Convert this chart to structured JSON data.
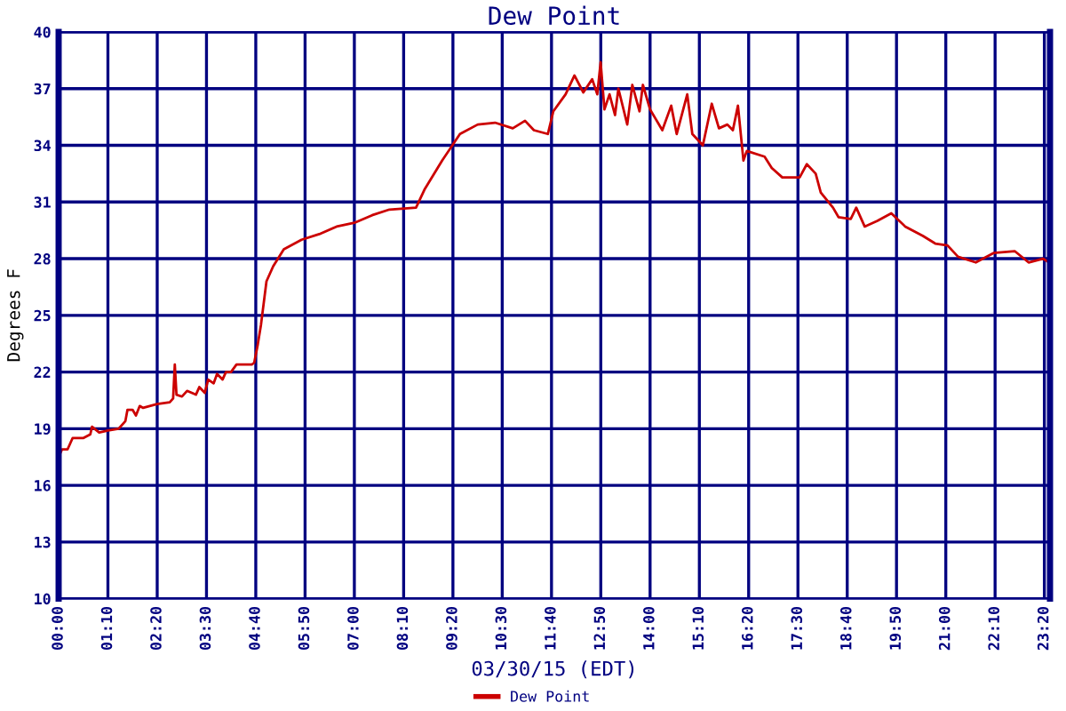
{
  "chart_data": {
    "type": "line",
    "title": "Dew Point",
    "xlabel": "03/30/15 (EDT)",
    "ylabel": "Degrees F",
    "xlim": [
      0,
      23.4667
    ],
    "ylim": [
      10,
      40
    ],
    "xticks": [
      {
        "value": 0,
        "label": "00:00"
      },
      {
        "value": 1.1667,
        "label": "01:10"
      },
      {
        "value": 2.3333,
        "label": "02:20"
      },
      {
        "value": 3.5,
        "label": "03:30"
      },
      {
        "value": 4.6667,
        "label": "04:40"
      },
      {
        "value": 5.8333,
        "label": "05:50"
      },
      {
        "value": 7,
        "label": "07:00"
      },
      {
        "value": 8.1667,
        "label": "08:10"
      },
      {
        "value": 9.3333,
        "label": "09:20"
      },
      {
        "value": 10.5,
        "label": "10:30"
      },
      {
        "value": 11.6667,
        "label": "11:40"
      },
      {
        "value": 12.8333,
        "label": "12:50"
      },
      {
        "value": 14,
        "label": "14:00"
      },
      {
        "value": 15.1667,
        "label": "15:10"
      },
      {
        "value": 16.3333,
        "label": "16:20"
      },
      {
        "value": 17.5,
        "label": "17:30"
      },
      {
        "value": 18.6667,
        "label": "18:40"
      },
      {
        "value": 19.8333,
        "label": "19:50"
      },
      {
        "value": 21,
        "label": "21:00"
      },
      {
        "value": 22.1667,
        "label": "22:10"
      },
      {
        "value": 23.3333,
        "label": "23:20"
      },
      {
        "value": 23.4667,
        "label": null
      }
    ],
    "yticks": [
      10,
      13,
      16,
      19,
      22,
      25,
      28,
      31,
      34,
      37,
      40
    ],
    "grid": true,
    "legend": "bottom",
    "marker": "none",
    "line_style": "solid",
    "series": [
      {
        "name": "Dew Point",
        "color": "#cc0000",
        "x": [
          0,
          0.08,
          0.21,
          0.33,
          0.58,
          0.75,
          0.79,
          0.96,
          1.17,
          1.42,
          1.58,
          1.63,
          1.75,
          1.83,
          1.92,
          2.0,
          2.33,
          2.63,
          2.71,
          2.75,
          2.79,
          2.92,
          3.04,
          3.25,
          3.33,
          3.46,
          3.54,
          3.67,
          3.75,
          3.88,
          3.96,
          4.08,
          4.21,
          4.58,
          4.63,
          4.71,
          4.79,
          4.92,
          5.0,
          5.08,
          5.33,
          5.75,
          6.17,
          6.58,
          7.0,
          7.42,
          7.83,
          8.46,
          8.67,
          9.08,
          9.5,
          9.92,
          10.33,
          10.75,
          11.04,
          11.25,
          11.58,
          11.71,
          12.0,
          12.21,
          12.42,
          12.63,
          12.75,
          12.83,
          12.92,
          13.04,
          13.17,
          13.25,
          13.46,
          13.58,
          13.75,
          13.83,
          14.0,
          14.29,
          14.5,
          14.63,
          14.88,
          15.0,
          15.25,
          15.46,
          15.63,
          15.83,
          15.96,
          16.08,
          16.21,
          16.29,
          16.71,
          16.88,
          17.13,
          17.54,
          17.71,
          17.92,
          18.04,
          18.33,
          18.46,
          18.75,
          18.88,
          19.08,
          19.38,
          19.71,
          20.04,
          20.46,
          20.75,
          21.04,
          21.29,
          21.71,
          22.13,
          22.63,
          22.96,
          23.3,
          23.45
        ],
        "values": [
          17.5,
          17.9,
          17.9,
          18.5,
          18.5,
          18.7,
          19.1,
          18.8,
          18.9,
          19.0,
          19.4,
          20.0,
          20.0,
          19.7,
          20.2,
          20.1,
          20.3,
          20.4,
          20.6,
          22.4,
          20.8,
          20.7,
          21.0,
          20.8,
          21.2,
          20.9,
          21.6,
          21.4,
          21.9,
          21.6,
          22.0,
          22.0,
          22.4,
          22.4,
          22.5,
          23.4,
          24.5,
          26.8,
          27.2,
          27.6,
          28.5,
          29.0,
          29.3,
          29.7,
          29.9,
          30.3,
          30.6,
          30.7,
          31.7,
          33.2,
          34.6,
          35.1,
          35.2,
          34.9,
          35.3,
          34.8,
          34.6,
          35.8,
          36.7,
          37.7,
          36.8,
          37.5,
          36.7,
          38.4,
          35.9,
          36.7,
          35.6,
          37.0,
          35.1,
          37.2,
          35.8,
          37.2,
          35.9,
          34.8,
          36.1,
          34.6,
          36.7,
          34.6,
          34.0,
          36.2,
          34.9,
          35.1,
          34.8,
          36.1,
          33.2,
          33.7,
          33.4,
          32.8,
          32.3,
          32.3,
          33.0,
          32.5,
          31.5,
          30.7,
          30.2,
          30.1,
          30.7,
          29.7,
          30.0,
          30.4,
          29.7,
          29.2,
          28.8,
          28.7,
          28.1,
          27.8,
          28.3,
          28.4,
          27.8,
          28.0,
          27.8
        ]
      }
    ]
  }
}
